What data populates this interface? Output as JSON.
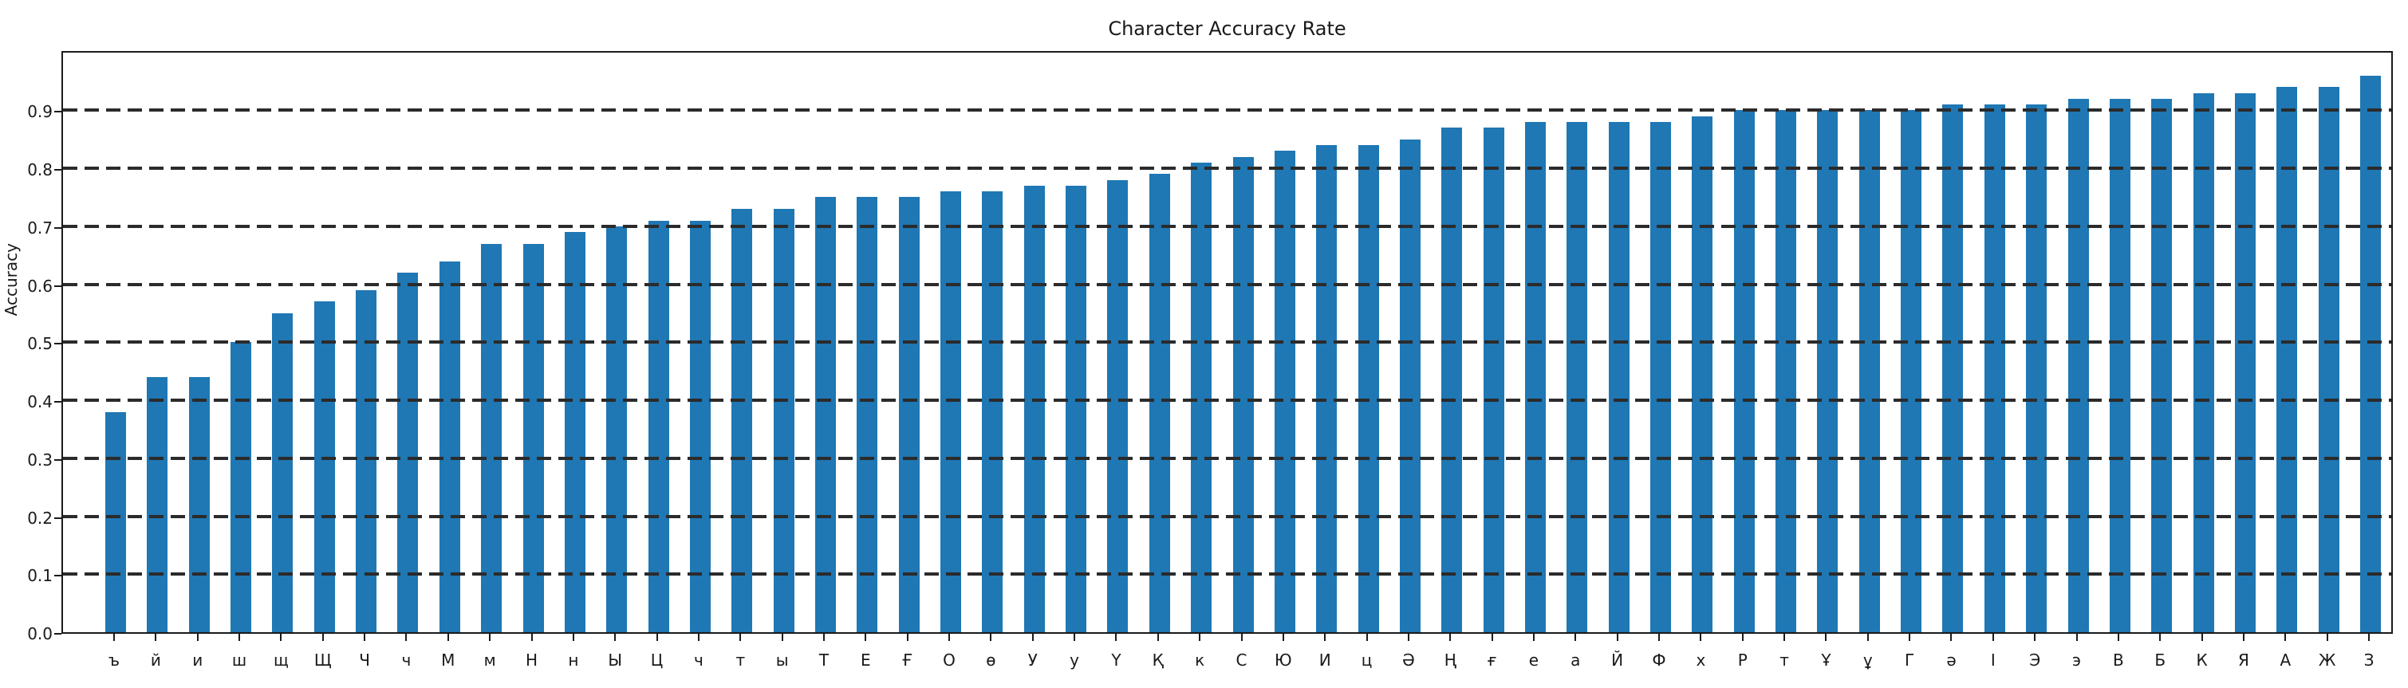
{
  "figure": {
    "title": "Character Accuracy Rate",
    "ylabel": "Accuracy"
  },
  "chart_data": {
    "type": "bar",
    "title": "Character Accuracy Rate",
    "xlabel": "",
    "ylabel": "Accuracy",
    "ylim": [
      0.0,
      1.005
    ],
    "yticks": [
      0.0,
      0.1,
      0.2,
      0.3,
      0.4,
      0.5,
      0.6,
      0.7,
      0.8,
      0.9
    ],
    "grid": "horizontal-dashed-over-bars",
    "legend": "none",
    "bar_color": "#1f77b4",
    "categories": [
      "ъ",
      "й",
      "и",
      "ш",
      "щ",
      "Щ",
      "Ч",
      "ч",
      "М",
      "м",
      "Н",
      "н",
      "Ы",
      "Ц",
      "ч",
      "т",
      "ы",
      "Т",
      "Е",
      "Ғ",
      "О",
      "ө",
      "У",
      "у",
      "Ү",
      "Қ",
      "к",
      "С",
      "Ю",
      "И",
      "ц",
      "Ә",
      "Ң",
      "ғ",
      "е",
      "а",
      "Й",
      "Ф",
      "х",
      "Р",
      "т",
      "Ұ",
      "ұ",
      "Г",
      "ә",
      "І",
      "Э",
      "э",
      "В",
      "Б",
      "К",
      "Я",
      "А",
      "Ж",
      "З"
    ],
    "values": [
      0.38,
      0.44,
      0.44,
      0.5,
      0.55,
      0.57,
      0.59,
      0.62,
      0.64,
      0.67,
      0.67,
      0.69,
      0.7,
      0.71,
      0.71,
      0.73,
      0.73,
      0.75,
      0.75,
      0.75,
      0.76,
      0.76,
      0.77,
      0.77,
      0.78,
      0.79,
      0.81,
      0.82,
      0.83,
      0.84,
      0.84,
      0.85,
      0.87,
      0.87,
      0.88,
      0.88,
      0.88,
      0.88,
      0.89,
      0.9,
      0.9,
      0.9,
      0.9,
      0.9,
      0.91,
      0.91,
      0.91,
      0.92,
      0.92,
      0.92,
      0.93,
      0.93,
      0.94,
      0.94,
      0.96
    ]
  }
}
